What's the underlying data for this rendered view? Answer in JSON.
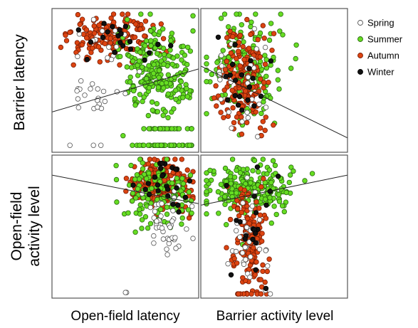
{
  "chart_data": {
    "type": "scatter",
    "layout": "2x2 scatterplot matrix",
    "row_labels": [
      "Barrier latency",
      "Open-field activity level"
    ],
    "column_labels": [
      "Open-field latency",
      "Barrier activity level"
    ],
    "grid": false,
    "legend_position": "top-right",
    "series": [
      {
        "name": "Spring",
        "color": "#ffffff",
        "edge": "#555555"
      },
      {
        "name": "Summer",
        "color": "#66dd22",
        "edge": "#2a6a10"
      },
      {
        "name": "Autumn",
        "color": "#dd4411",
        "edge": "#7a1d05"
      },
      {
        "name": "Winter",
        "color": "#111111",
        "edge": "#000000"
      }
    ],
    "panels": [
      {
        "id": "top-left",
        "x_variable": "Open-field latency",
        "y_variable": "Barrier latency",
        "trend_line": {
          "x": [
            0,
            1
          ],
          "y": [
            0.28,
            0.58
          ]
        },
        "clusters": [
          {
            "series": "Autumn",
            "count": 170,
            "cx": 0.42,
            "cy": 0.8,
            "sx": 0.16,
            "sy": 0.09,
            "xlim": [
              0.02,
              0.97
            ],
            "ylim": [
              0.45,
              0.98
            ]
          },
          {
            "series": "Summer",
            "count": 230,
            "cx": 0.72,
            "cy": 0.55,
            "sx": 0.12,
            "sy": 0.15,
            "xlim": [
              0.45,
              0.98
            ],
            "ylim": [
              0.02,
              0.98
            ]
          },
          {
            "series": "Summer",
            "count": 45,
            "cx": 0.8,
            "cy": 0.03,
            "sx": 0.1,
            "sy": 0.0,
            "xlim": [
              0.55,
              0.97
            ],
            "ylim": [
              0.02,
              0.04
            ]
          },
          {
            "series": "Summer",
            "count": 30,
            "cx": 0.8,
            "cy": 0.15,
            "sx": 0.1,
            "sy": 0.0,
            "xlim": [
              0.55,
              0.97
            ],
            "ylim": [
              0.14,
              0.16
            ]
          },
          {
            "series": "Spring",
            "count": 20,
            "cx": 0.28,
            "cy": 0.4,
            "sx": 0.12,
            "sy": 0.06,
            "xlim": [
              0.05,
              0.5
            ],
            "ylim": [
              0.25,
              0.55
            ]
          },
          {
            "series": "Spring",
            "count": 14,
            "cx": 0.3,
            "cy": 0.75,
            "sx": 0.13,
            "sy": 0.1,
            "xlim": [
              0.02,
              0.6
            ],
            "ylim": [
              0.5,
              0.97
            ]
          },
          {
            "series": "Spring",
            "count": 3,
            "cx": 0.3,
            "cy": 0.03,
            "sx": 0.15,
            "sy": 0.0,
            "xlim": [
              0.1,
              0.4
            ],
            "ylim": [
              0.02,
              0.04
            ]
          },
          {
            "series": "Winter",
            "count": 20,
            "cx": 0.45,
            "cy": 0.8,
            "sx": 0.18,
            "sy": 0.1,
            "xlim": [
              0.05,
              0.95
            ],
            "ylim": [
              0.5,
              0.98
            ]
          }
        ]
      },
      {
        "id": "top-right",
        "x_variable": "Barrier activity level",
        "y_variable": "Barrier latency",
        "trend_line": {
          "x": [
            0,
            1
          ],
          "y": [
            0.6,
            0.1
          ]
        },
        "clusters": [
          {
            "series": "Summer",
            "count": 190,
            "cx": 0.28,
            "cy": 0.6,
            "sx": 0.12,
            "sy": 0.17,
            "xlim": [
              0.02,
              0.8
            ],
            "ylim": [
              0.02,
              0.98
            ]
          },
          {
            "series": "Autumn",
            "count": 170,
            "cx": 0.3,
            "cy": 0.5,
            "sx": 0.08,
            "sy": 0.2,
            "xlim": [
              0.02,
              0.6
            ],
            "ylim": [
              0.1,
              0.98
            ]
          },
          {
            "series": "Spring",
            "count": 30,
            "cx": 0.28,
            "cy": 0.5,
            "sx": 0.1,
            "sy": 0.18,
            "xlim": [
              0.02,
              0.5
            ],
            "ylim": [
              0.02,
              0.98
            ]
          },
          {
            "series": "Winter",
            "count": 20,
            "cx": 0.28,
            "cy": 0.55,
            "sx": 0.1,
            "sy": 0.18,
            "xlim": [
              0.02,
              0.6
            ],
            "ylim": [
              0.02,
              0.95
            ]
          }
        ]
      },
      {
        "id": "bottom-left",
        "x_variable": "Open-field latency",
        "y_variable": "Open-field activity level",
        "trend_line": {
          "x": [
            0,
            1
          ],
          "y": [
            0.86,
            0.66
          ]
        },
        "clusters": [
          {
            "series": "Autumn",
            "count": 240,
            "cx": 0.75,
            "cy": 0.82,
            "sx": 0.1,
            "sy": 0.09,
            "xlim": [
              0.2,
              0.98
            ],
            "ylim": [
              0.4,
              0.99
            ]
          },
          {
            "series": "Summer",
            "count": 120,
            "cx": 0.72,
            "cy": 0.75,
            "sx": 0.12,
            "sy": 0.12,
            "xlim": [
              0.02,
              0.98
            ],
            "ylim": [
              0.25,
              0.99
            ]
          },
          {
            "series": "Spring",
            "count": 45,
            "cx": 0.8,
            "cy": 0.55,
            "sx": 0.08,
            "sy": 0.15,
            "xlim": [
              0.5,
              0.98
            ],
            "ylim": [
              0.15,
              0.95
            ]
          },
          {
            "series": "Spring",
            "count": 2,
            "cx": 0.5,
            "cy": 0.02,
            "sx": 0.02,
            "sy": 0.0,
            "xlim": [
              0.48,
              0.53
            ],
            "ylim": [
              0.01,
              0.03
            ]
          },
          {
            "series": "Winter",
            "count": 25,
            "cx": 0.75,
            "cy": 0.82,
            "sx": 0.1,
            "sy": 0.1,
            "xlim": [
              0.3,
              0.98
            ],
            "ylim": [
              0.45,
              0.99
            ]
          }
        ]
      },
      {
        "id": "bottom-right",
        "x_variable": "Barrier activity level",
        "y_variable": "Open-field activity level",
        "trend_line": {
          "x": [
            0,
            1
          ],
          "y": [
            0.65,
            0.86
          ]
        },
        "clusters": [
          {
            "series": "Summer",
            "count": 230,
            "cx": 0.32,
            "cy": 0.78,
            "sx": 0.16,
            "sy": 0.1,
            "xlim": [
              0.02,
              0.98
            ],
            "ylim": [
              0.35,
              0.99
            ]
          },
          {
            "series": "Autumn",
            "count": 160,
            "cx": 0.33,
            "cy": 0.4,
            "sx": 0.06,
            "sy": 0.22,
            "xlim": [
              0.1,
              0.7
            ],
            "ylim": [
              0.01,
              0.98
            ]
          },
          {
            "series": "Spring",
            "count": 35,
            "cx": 0.35,
            "cy": 0.35,
            "sx": 0.06,
            "sy": 0.2,
            "xlim": [
              0.1,
              0.6
            ],
            "ylim": [
              0.01,
              0.95
            ]
          },
          {
            "series": "Winter",
            "count": 20,
            "cx": 0.33,
            "cy": 0.5,
            "sx": 0.08,
            "sy": 0.2,
            "xlim": [
              0.1,
              0.6
            ],
            "ylim": [
              0.05,
              0.95
            ]
          }
        ]
      }
    ]
  }
}
